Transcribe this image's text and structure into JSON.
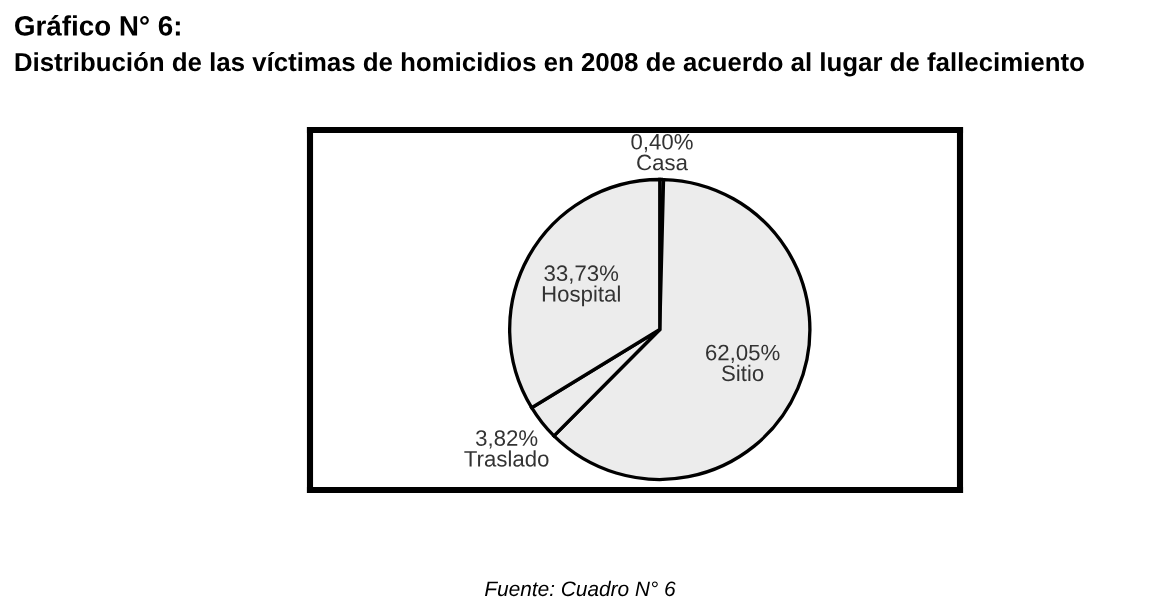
{
  "chart_data": {
    "type": "pie",
    "title": "Gráfico N° 6:",
    "subtitle": "Distribución de las víctimas de homicidios en 2008 de acuerdo al lugar de fallecimiento",
    "categories": [
      "Casa",
      "Sitio",
      "Traslado",
      "Hospital"
    ],
    "values": [
      0.4,
      62.05,
      3.82,
      33.73
    ],
    "value_labels": [
      "0,40%",
      "62,05%",
      "3,82%",
      "33,73%"
    ],
    "colors": [
      "#ececec",
      "#ececec",
      "#ececec",
      "#ececec"
    ],
    "annotations": [
      "Fuente: Cuadro N° 6"
    ]
  }
}
